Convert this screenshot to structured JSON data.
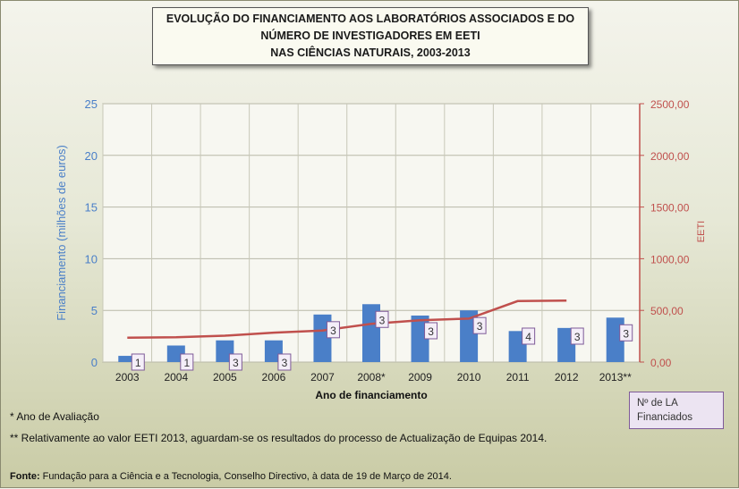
{
  "title": {
    "line1": "EVOLUÇÃO DO FINANCIAMENTO AOS LABORATÓRIOS ASSOCIADOS E DO",
    "line2": "NÚMERO DE INVESTIGADORES EM EETI",
    "line3": "NAS CIÊNCIAS NATURAIS, 2003-2013"
  },
  "chart_data": {
    "type": "bar",
    "categories": [
      "2003",
      "2004",
      "2005",
      "2006",
      "2007",
      "2008*",
      "2009",
      "2010",
      "2011",
      "2012",
      "2013**"
    ],
    "series": [
      {
        "type": "bar",
        "axis": "left",
        "values": [
          0.6,
          1.6,
          2.1,
          2.1,
          4.6,
          5.6,
          4.5,
          5.0,
          3.0,
          3.3,
          4.3
        ]
      },
      {
        "type": "line",
        "axis": "right",
        "values": [
          235,
          240,
          255,
          285,
          305,
          370,
          405,
          420,
          590,
          595,
          null
        ]
      }
    ],
    "bar_labels": [
      "1",
      "1",
      "3",
      "3",
      "3",
      "3",
      "3",
      "3",
      "4",
      "3",
      "3"
    ],
    "xlabel": "Ano de financiamento",
    "ylabel_left": "Financiamento (milhões de euros)",
    "ylabel_right": "EETI",
    "ylim_left": [
      0,
      25
    ],
    "ylim_right": [
      0,
      2500
    ],
    "yticks_left": [
      "0",
      "5",
      "10",
      "15",
      "20",
      "25"
    ],
    "yticks_right": [
      "0,00",
      "500,00",
      "1000,00",
      "1500,00",
      "2000,00",
      "2500,00"
    ],
    "grid": true,
    "colors": {
      "bars": "#4a7fc8",
      "line": "#c0504d",
      "left_axis": "#4a7fc8",
      "right_axis": "#c0504d",
      "label_border": "#7e5a98",
      "label_fill": "#f4eef8"
    }
  },
  "legend_box": {
    "text": "Nº de LA Financiados"
  },
  "notes": {
    "n1": "* Ano de Avaliação",
    "n2": "** Relativamente ao valor EETI 2013, aguardam-se os resultados do processo de Actualização de Equipas 2014."
  },
  "source": {
    "label": "Fonte:",
    "text": " Fundação para a Ciência e a Tecnologia, Conselho Directivo, à data de 19 de Março de 2014."
  }
}
